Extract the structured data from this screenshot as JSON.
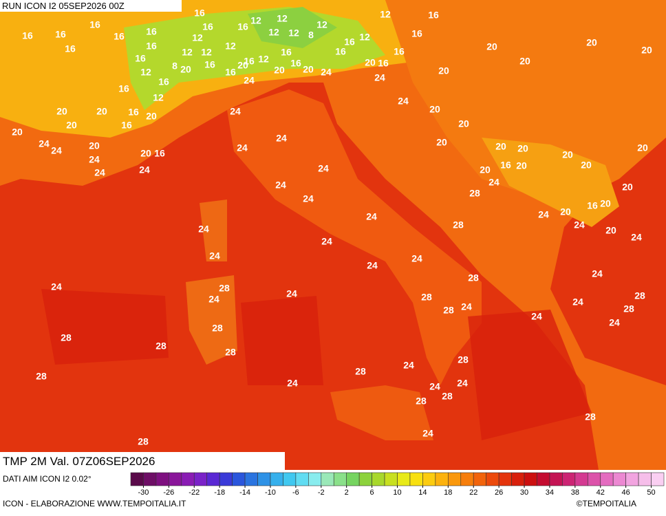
{
  "header": {
    "run": "RUN ICON I2 05SEP2026 00Z",
    "valid": "TMP 2M Val. 07Z06SEP2026",
    "source": "DATI AIM ICON I2 0.02°",
    "credit": "ICON - ELABORAZIONE WWW.TEMPOITALIA.IT",
    "copyright": "©TEMPOITALIA"
  },
  "legend": {
    "lim": [
      -32,
      52
    ],
    "ticks": [
      -30,
      -26,
      -22,
      -18,
      -14,
      -10,
      -6,
      -2,
      2,
      6,
      10,
      14,
      18,
      22,
      26,
      30,
      34,
      38,
      42,
      46,
      50
    ],
    "colors": [
      "#5a0a4a",
      "#6e0e66",
      "#7e1080",
      "#8a169a",
      "#8a1cb4",
      "#7a22c8",
      "#5a28d4",
      "#3a3ad8",
      "#2a56dc",
      "#2a74e0",
      "#2e92e6",
      "#36b0ec",
      "#40c8f0",
      "#60dcf2",
      "#88ecee",
      "#9ae8b8",
      "#8ae08a",
      "#76d460",
      "#8cd23c",
      "#a8d82c",
      "#c8e020",
      "#e8ea18",
      "#f8e010",
      "#fccc10",
      "#fcb20e",
      "#fa980c",
      "#f67e0c",
      "#f2640c",
      "#ec4a0c",
      "#e4340c",
      "#d8200c",
      "#cc1010",
      "#c40c30",
      "#c41454",
      "#cc2474",
      "#d43a92",
      "#dc52aa",
      "#e46cc0",
      "#ec88d2",
      "#f2a4e0",
      "#f6beea",
      "#facff2"
    ]
  },
  "map_labels": [
    16,
    16,
    16,
    16,
    16,
    16,
    16,
    16,
    16,
    12,
    16,
    12,
    12,
    12,
    8,
    12,
    12,
    12,
    12,
    12,
    16,
    20,
    8,
    12,
    16,
    16,
    12,
    16,
    16,
    20,
    16,
    12,
    16,
    20,
    16,
    20,
    24,
    16,
    16,
    12,
    12,
    16,
    16,
    16,
    20,
    16,
    24,
    24,
    20,
    20,
    20,
    20,
    20,
    20,
    20,
    20,
    16,
    20,
    16,
    20,
    24,
    24,
    20,
    24,
    24,
    20,
    16,
    24,
    24,
    24,
    24,
    24,
    24,
    24,
    24,
    20,
    20,
    20,
    20,
    20,
    16,
    20,
    20,
    24,
    20,
    20,
    20,
    20,
    28,
    24,
    20,
    16,
    20,
    24,
    20,
    24,
    28,
    24,
    24,
    24,
    24,
    24,
    24,
    28,
    24,
    28,
    24,
    28,
    24,
    24,
    28,
    24,
    28,
    24,
    28,
    24,
    24,
    28,
    28,
    28,
    28,
    24,
    28,
    28,
    28,
    24,
    24,
    24,
    28,
    28,
    24,
    28,
    28
  ]
}
